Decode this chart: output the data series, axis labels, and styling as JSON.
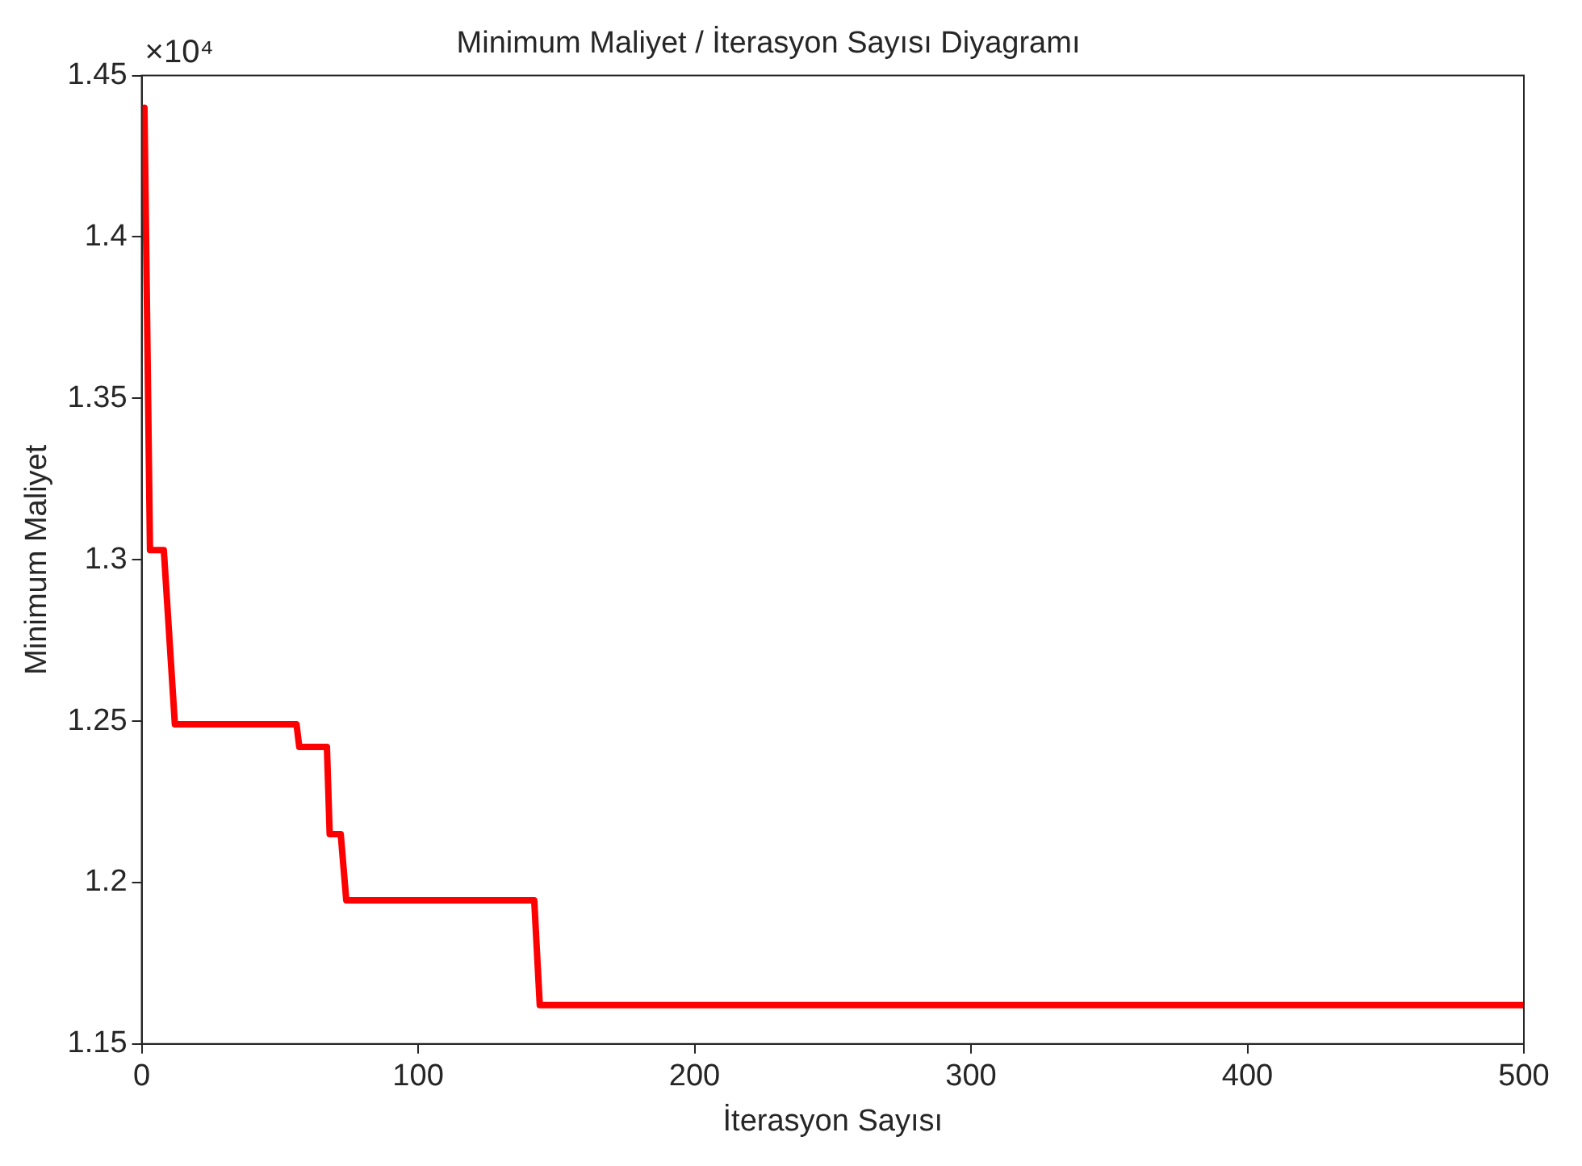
{
  "chart_data": {
    "type": "line",
    "title": "Minimum Maliyet / İterasyon Sayısı Diyagramı",
    "xlabel": "İterasyon Sayısı",
    "ylabel": "Minimum Maliyet",
    "annotations": [
      "×10⁴"
    ],
    "x": [
      1,
      3,
      8,
      12,
      56,
      57,
      67,
      68,
      72,
      74,
      142,
      144,
      500
    ],
    "series": [
      {
        "color": "#ff0000",
        "values": [
          1.44,
          1.303,
          1.303,
          1.249,
          1.249,
          1.242,
          1.242,
          1.215,
          1.215,
          1.1945,
          1.1945,
          1.162,
          1.162
        ]
      }
    ],
    "xlim": [
      0,
      500
    ],
    "xticks": [
      0,
      100,
      200,
      300,
      400,
      500
    ],
    "ylim": [
      1.15,
      1.45
    ],
    "yticks": [
      1.15,
      1.2,
      1.25,
      1.3,
      1.35,
      1.4,
      1.45
    ],
    "grid": false,
    "legend": false,
    "marker": "none",
    "line_style": "solid"
  }
}
